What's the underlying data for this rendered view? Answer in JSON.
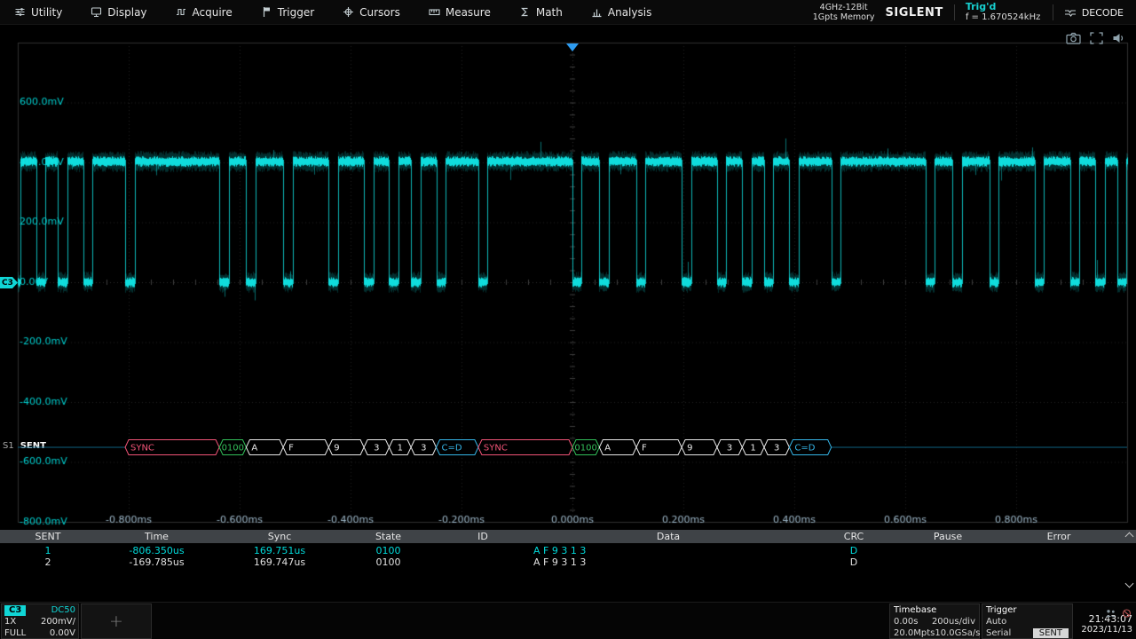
{
  "menubar": {
    "items": [
      {
        "id": "utility",
        "label": "Utility"
      },
      {
        "id": "display",
        "label": "Display"
      },
      {
        "id": "acquire",
        "label": "Acquire"
      },
      {
        "id": "trigger",
        "label": "Trigger"
      },
      {
        "id": "cursors",
        "label": "Cursors"
      },
      {
        "id": "measure",
        "label": "Measure"
      },
      {
        "id": "math",
        "label": "Math"
      },
      {
        "id": "analysis",
        "label": "Analysis"
      }
    ],
    "system_info": {
      "line1": "4GHz-12Bit",
      "line2": "1Gpts Memory"
    },
    "brand": "SIGLENT",
    "trigger_status": "Trig'd",
    "trigger_status_color": "#17cfcf",
    "trigger_frequency": "f = 1.670524kHz",
    "decode_button": "DECODE"
  },
  "scope": {
    "voltage_labels": [
      "600.0mV",
      "400.0mV",
      "200.0mV",
      "0.00V",
      "-200.0mV",
      "-400.0mV",
      "-600.0mV",
      "-800.0mV"
    ],
    "time_labels": [
      "-0.800ms",
      "-0.600ms",
      "-0.400ms",
      "-0.200ms",
      "0.000ms",
      "0.200ms",
      "0.400ms",
      "0.600ms",
      "0.800ms"
    ],
    "channel_marker": "C3",
    "colors": {
      "trace": "#10e6e6",
      "grid": "#202020",
      "grid_bright": "#2f2f2f",
      "voltage_label": "#00cfcf",
      "time_label": "#9db7c8",
      "trigger_marker": "#2d9bf0",
      "bus_line": "#0e6080"
    }
  },
  "sent_signal": {
    "tick_us": 3.0313,
    "low_ticks": 5,
    "periods_ticks": [
      56,
      16,
      22,
      27,
      21,
      15,
      13,
      15,
      25
    ],
    "frame_starts_us": [
      -1442.915,
      -806.35,
      -169.785,
      466.78
    ],
    "high_mv": 400,
    "low_mv": 0
  },
  "decode_bus": {
    "s1_label": "S1",
    "bus_label": "SENT",
    "frames": [
      {
        "start_us": -806.35,
        "segments": [
          {
            "text": "SYNC",
            "ticks": 56,
            "color": "#f25477"
          },
          {
            "text": "0100",
            "ticks": 16,
            "color": "#33bf5a"
          },
          {
            "text": "A",
            "ticks": 22,
            "color": "#e8e8e8"
          },
          {
            "text": "F",
            "ticks": 27,
            "color": "#e8e8e8"
          },
          {
            "text": "9",
            "ticks": 21,
            "color": "#e8e8e8"
          },
          {
            "text": "3",
            "ticks": 15,
            "color": "#e8e8e8"
          },
          {
            "text": "1",
            "ticks": 13,
            "color": "#e8e8e8"
          },
          {
            "text": "3",
            "ticks": 15,
            "color": "#e8e8e8"
          },
          {
            "text": "C=D",
            "ticks": 25,
            "color": "#35b6e8"
          }
        ]
      },
      {
        "start_us": -169.785,
        "segments": [
          {
            "text": "SYNC",
            "ticks": 56,
            "color": "#f25477"
          },
          {
            "text": "0100",
            "ticks": 16,
            "color": "#33bf5a"
          },
          {
            "text": "A",
            "ticks": 22,
            "color": "#e8e8e8"
          },
          {
            "text": "F",
            "ticks": 27,
            "color": "#e8e8e8"
          },
          {
            "text": "9",
            "ticks": 21,
            "color": "#e8e8e8"
          },
          {
            "text": "3",
            "ticks": 15,
            "color": "#e8e8e8"
          },
          {
            "text": "1",
            "ticks": 13,
            "color": "#e8e8e8"
          },
          {
            "text": "3",
            "ticks": 15,
            "color": "#e8e8e8"
          },
          {
            "text": "C=D",
            "ticks": 25,
            "color": "#35b6e8"
          }
        ]
      }
    ]
  },
  "decode_table": {
    "headers": [
      "SENT",
      "Time",
      "Sync",
      "State",
      "ID",
      "Data",
      "CRC",
      "Pause",
      "Error"
    ],
    "highlight_color": "#00d9d9",
    "rows": [
      {
        "highlight": true,
        "cells": [
          "1",
          "-806.350us",
          "169.751us",
          "0100",
          "",
          "A F 9 3 1 3",
          "D",
          "",
          ""
        ]
      },
      {
        "highlight": false,
        "cells": [
          "2",
          "-169.785us",
          "169.747us",
          "0100",
          "",
          "A F 9 3 1 3",
          "D",
          "",
          ""
        ]
      }
    ]
  },
  "statusbar": {
    "add_symbol": "+",
    "channel": {
      "name": "C3",
      "coupling": "DC50",
      "probe": "1X",
      "scale": "200mV/",
      "bandwidth": "FULL",
      "offset": "0.00V",
      "color": "#10d6d6"
    },
    "timebase": {
      "title": "Timebase",
      "delay": "0.00s",
      "scale": "200us/div",
      "memory": "20.0Mpts",
      "sample_rate": "10.0GSa/s"
    },
    "trigger": {
      "title": "Trigger",
      "mode": "Auto",
      "type": "Serial",
      "source": "SENT"
    },
    "clock": {
      "time": "21:43:07",
      "date": "2023/11/13"
    }
  }
}
